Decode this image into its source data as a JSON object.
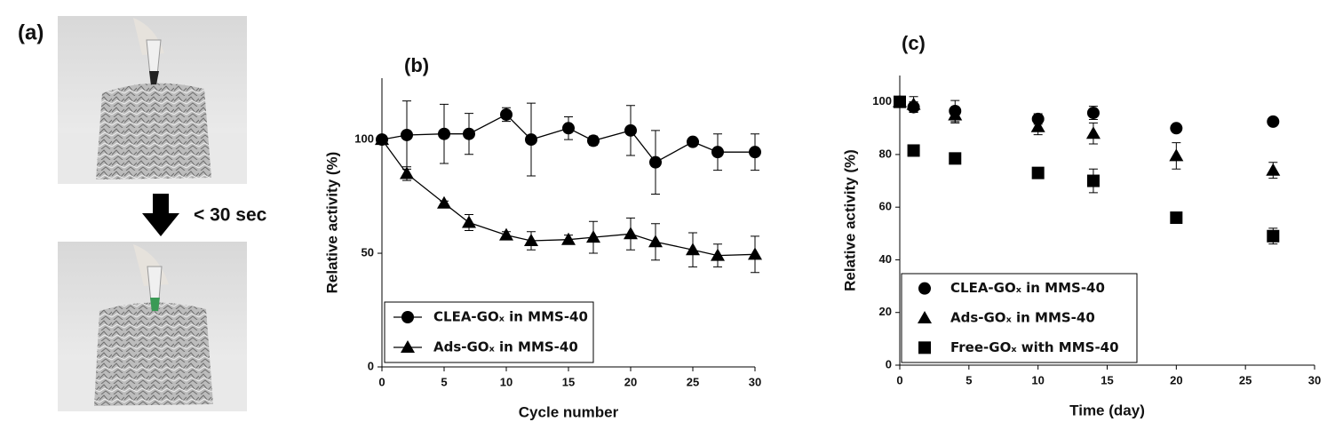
{
  "panel_a": {
    "label": "(a)",
    "arrow_label": "< 30 sec"
  },
  "chart_data": [
    {
      "type": "line",
      "panel_label": "(b)",
      "x_label": "Cycle number",
      "y_label": "Relative activity (%)",
      "x": [
        0,
        2,
        5,
        7,
        10,
        12,
        15,
        17,
        20,
        22,
        25,
        27,
        30
      ],
      "xlim": [
        0,
        30
      ],
      "xticks": [
        0,
        5,
        10,
        15,
        20,
        25,
        30
      ],
      "ylim": [
        0,
        127
      ],
      "yticks": [
        0,
        50,
        100
      ],
      "series": [
        {
          "name": "CLEA-GOₓ in MMS-40",
          "color": "#000000",
          "marker": "circle",
          "values": [
            100,
            102,
            102.5,
            102.5,
            111,
            100,
            105,
            99.5,
            104,
            90,
            99,
            94.5,
            94.5
          ],
          "errors": [
            0,
            15,
            13,
            9,
            3,
            16,
            5,
            2,
            11,
            14,
            1,
            8,
            8
          ]
        },
        {
          "name": "Ads-GOₓ in MMS-40",
          "color": "#000000",
          "marker": "triangle",
          "values": [
            100,
            85,
            72,
            63.5,
            58,
            55.5,
            56,
            57,
            58.5,
            55,
            51.5,
            49,
            49.5
          ],
          "errors": [
            0,
            3,
            1,
            3.5,
            1.5,
            4,
            2,
            7,
            7,
            8,
            7.5,
            5,
            8
          ]
        }
      ]
    },
    {
      "type": "scatter",
      "panel_label": "(c)",
      "x_label": "Time (day)",
      "y_label": "Relative activity (%)",
      "x": [
        0,
        1,
        4,
        10,
        14,
        20,
        27
      ],
      "xlim": [
        0,
        30
      ],
      "xticks": [
        0,
        5,
        10,
        15,
        20,
        25,
        30
      ],
      "ylim": [
        0,
        110
      ],
      "yticks": [
        0,
        20,
        40,
        60,
        80,
        100
      ],
      "series": [
        {
          "name": "CLEA-GOₓ in MMS-40",
          "color": "#000000",
          "marker": "circle",
          "values": [
            100,
            98,
            96.5,
            93.5,
            95.8,
            90,
            92.5
          ],
          "errors": [
            1,
            2,
            4,
            2,
            2.5,
            1,
            1
          ]
        },
        {
          "name": "Ads-GOₓ in MMS-40",
          "color": "#000000",
          "marker": "triangle",
          "values": [
            100,
            99,
            95,
            90.5,
            88,
            79.5,
            74
          ],
          "errors": [
            1,
            3,
            3,
            3,
            4,
            5,
            3
          ]
        },
        {
          "name": "Free-GOₓ with MMS-40",
          "color": "#000000",
          "marker": "square",
          "values": [
            100,
            81.5,
            78.5,
            73,
            70,
            56,
            49
          ],
          "errors": [
            1,
            1,
            1,
            1,
            4.5,
            1,
            3
          ]
        }
      ]
    }
  ]
}
